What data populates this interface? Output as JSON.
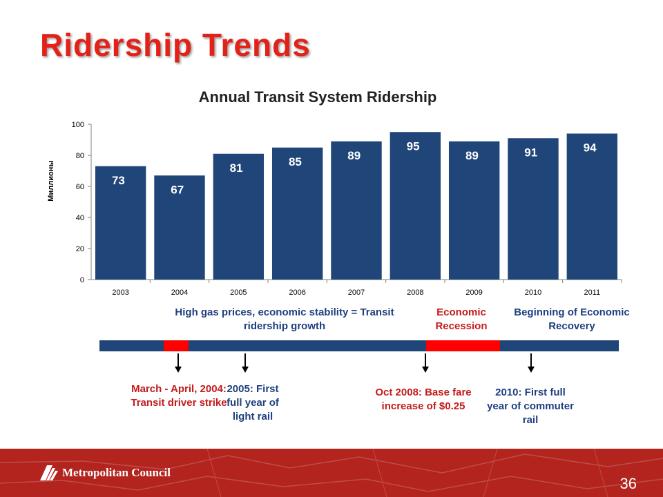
{
  "slide": {
    "title": "Ridership Trends",
    "page_number": "36",
    "logo_text": "Metropolitan Council"
  },
  "chart_data": {
    "type": "bar",
    "title": "Annual Transit System Ridership",
    "xlabel": "",
    "ylabel": "Миллионы",
    "categories": [
      "2003",
      "2004",
      "2005",
      "2006",
      "2007",
      "2008",
      "2009",
      "2010",
      "2011"
    ],
    "values": [
      73,
      67,
      81,
      85,
      89,
      95,
      89,
      91,
      94
    ],
    "ylim": [
      0,
      100
    ],
    "yticks": [
      0,
      20,
      40,
      60,
      80,
      100
    ],
    "grid": false,
    "bar_color": "#1f4579"
  },
  "timeline": {
    "bar_color": "#1f4579",
    "highlight_color": "#ff0000",
    "phases": {
      "growth": "High gas prices, economic stability = Transit ridership growth",
      "recession": "Economic Recession",
      "recovery": "Beginning of Economic Recovery"
    },
    "events": {
      "strike": "March - April, 2004: Transit driver strike",
      "light_rail": "2005: First full year of light rail",
      "fare": "Oct 2008: Base fare increase of $0.25",
      "commuter_rail": "2010: First full year of commuter rail"
    }
  }
}
